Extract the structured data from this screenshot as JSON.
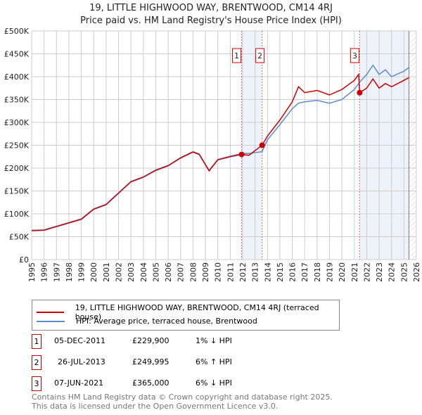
{
  "chart_data": {
    "type": "line",
    "title": "19, LITTLE HIGHWOOD WAY, BRENTWOOD, CM14 4RJ",
    "subtitle": "Price paid vs. HM Land Registry's House Price Index (HPI)",
    "xlim": [
      1995,
      2026
    ],
    "ylim": [
      0,
      500000
    ],
    "yticks": [
      {
        "v": 0,
        "label": "£0"
      },
      {
        "v": 50000,
        "label": "£50K"
      },
      {
        "v": 100000,
        "label": "£100K"
      },
      {
        "v": 150000,
        "label": "£150K"
      },
      {
        "v": 200000,
        "label": "£200K"
      },
      {
        "v": 250000,
        "label": "£250K"
      },
      {
        "v": 300000,
        "label": "£300K"
      },
      {
        "v": 350000,
        "label": "£350K"
      },
      {
        "v": 400000,
        "label": "£400K"
      },
      {
        "v": 450000,
        "label": "£450K"
      },
      {
        "v": 500000,
        "label": "£500K"
      }
    ],
    "xticks": [
      "1995",
      "1996",
      "1997",
      "1998",
      "1999",
      "2000",
      "2001",
      "2002",
      "2003",
      "2004",
      "2005",
      "2006",
      "2007",
      "2008",
      "2009",
      "2010",
      "2011",
      "2012",
      "2013",
      "2014",
      "2015",
      "2016",
      "2017",
      "2018",
      "2019",
      "2020",
      "2021",
      "2022",
      "2023",
      "2024",
      "2025",
      "2026"
    ],
    "series": [
      {
        "name": "19, LITTLE HIGHWOOD WAY, BRENTWOOD, CM14 4RJ (terraced house)",
        "color": "#cc0000",
        "x": [
          1995,
          1996,
          1997,
          1998,
          1999,
          2000,
          2001,
          2002,
          2003,
          2004,
          2005,
          2006,
          2007,
          2008,
          2008.5,
          2009.3,
          2010,
          2011,
          2011.92,
          2012.5,
          2013.57,
          2014,
          2015,
          2016,
          2016.5,
          2017,
          2018,
          2019,
          2020,
          2021,
          2021.35,
          2021.43,
          2022,
          2022.5,
          2023,
          2023.5,
          2024,
          2025,
          2025.4
        ],
        "y": [
          63000,
          64000,
          72000,
          80000,
          88000,
          110000,
          120000,
          145000,
          170000,
          180000,
          195000,
          205000,
          222000,
          235000,
          230000,
          194000,
          218000,
          225000,
          229900,
          228000,
          249995,
          270000,
          305000,
          345000,
          378000,
          365000,
          370000,
          360000,
          372000,
          392000,
          405000,
          365000,
          375000,
          395000,
          375000,
          385000,
          378000,
          392000,
          398000
        ]
      },
      {
        "name": "HPI: Average price, terraced house, Brentwood",
        "color": "#5b8bd0",
        "x": [
          1995,
          1996,
          1997,
          1998,
          1999,
          2000,
          2001,
          2002,
          2003,
          2004,
          2005,
          2006,
          2007,
          2008,
          2008.5,
          2009.3,
          2010,
          2011,
          2011.92,
          2012.5,
          2013.57,
          2014,
          2015,
          2016,
          2016.5,
          2017,
          2018,
          2019,
          2020,
          2021,
          2021.43,
          2022,
          2022.5,
          2023,
          2023.5,
          2024,
          2025,
          2025.4
        ],
        "y": [
          64000,
          65000,
          73000,
          81000,
          89000,
          111000,
          121000,
          146000,
          171000,
          181000,
          196000,
          206000,
          223000,
          236000,
          231000,
          195000,
          219000,
          226000,
          232000,
          232000,
          236000,
          262000,
          295000,
          330000,
          342000,
          345000,
          348000,
          342000,
          350000,
          372000,
          388000,
          405000,
          425000,
          405000,
          415000,
          400000,
          412000,
          420000
        ]
      }
    ],
    "sales": [
      {
        "id": "1",
        "x": 2011.92,
        "date": "05-DEC-2011",
        "price": 229900,
        "price_label": "£229,900",
        "hpi": "1% ↓ HPI"
      },
      {
        "id": "2",
        "x": 2013.57,
        "date": "26-JUL-2013",
        "price": 249995,
        "price_label": "£249,995",
        "hpi": "6% ↑ HPI"
      },
      {
        "id": "3",
        "x": 2021.43,
        "date": "07-JUN-2021",
        "price": 365000,
        "price_label": "£365,000",
        "hpi": "6% ↓ HPI"
      }
    ],
    "legend": "below"
  },
  "footer": {
    "line1": "Contains HM Land Registry data © Crown copyright and database right 2025.",
    "line2": "This data is licensed under the Open Government Licence v3.0."
  }
}
